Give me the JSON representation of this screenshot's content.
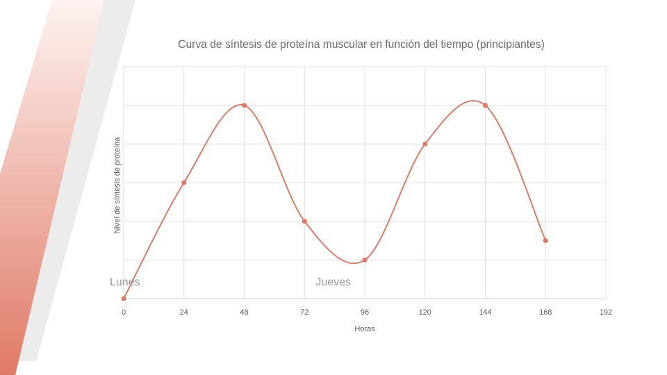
{
  "chart_data": {
    "type": "line",
    "title": "Curva de síntesis de proteína muscular en función del tiempo (principiantes)",
    "xlabel": "Horas",
    "ylabel": "Nivel de síntesis de proteína",
    "xlim": [
      0,
      192
    ],
    "ylim": [
      0,
      6
    ],
    "x_ticks": [
      0,
      24,
      48,
      72,
      96,
      120,
      144,
      168,
      192
    ],
    "y_ticks_labeled": false,
    "grid": true,
    "smooth": true,
    "series": [
      {
        "x": [
          0,
          24,
          48,
          72,
          96,
          120,
          144,
          168
        ],
        "y": [
          0,
          3,
          5,
          2,
          1,
          4,
          5,
          1.5
        ]
      }
    ],
    "annotations": [
      {
        "text": "Lunes",
        "x": 0
      },
      {
        "text": "Jueves",
        "x": 82
      }
    ]
  },
  "colors": {
    "series": "#e07a66",
    "grid": "#d9d9d9",
    "decor_gradient_top": "#fdf3f1",
    "decor_gradient_bottom": "#e07a66",
    "decor_gray": "#ececec"
  }
}
